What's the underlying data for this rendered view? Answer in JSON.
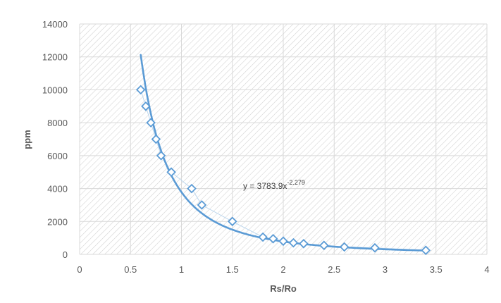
{
  "chart_data": {
    "type": "scatter",
    "xlabel": "Rs/Ro",
    "ylabel": "ppm",
    "xlim": [
      0,
      4
    ],
    "ylim": [
      0,
      14000
    ],
    "x_ticks": [
      "0",
      "0.5",
      "1",
      "1.5",
      "2",
      "2.5",
      "3",
      "3.5",
      "4"
    ],
    "y_ticks": [
      "0",
      "2000",
      "4000",
      "6000",
      "8000",
      "10000",
      "12000",
      "14000"
    ],
    "grid": true,
    "legend": "none",
    "series": [
      {
        "x": [
          0.6,
          0.65,
          0.7,
          0.75,
          0.8,
          0.9,
          1.1,
          1.2,
          1.5,
          1.8,
          1.9,
          2.0,
          2.1,
          2.2,
          2.4,
          2.6,
          2.9,
          3.4
        ],
        "y": [
          10000,
          9000,
          8000,
          7000,
          6000,
          5000,
          4000,
          3000,
          2000,
          1050,
          950,
          800,
          700,
          650,
          550,
          450,
          400,
          250
        ],
        "color": "#5b9bd5",
        "marker": "diamond"
      }
    ],
    "trendline": {
      "type": "power",
      "a": 3783.9,
      "b": -2.279,
      "x_range": [
        0.6,
        3.4
      ],
      "color": "#5b9bd5",
      "equation_prefix": "y = 3783.9x",
      "equation_exponent": "-2.279"
    },
    "colors": {
      "series": "#5b9bd5",
      "connector": "#bdd7ee",
      "grid": "#d9d9d9",
      "hatch": "#d0d0d0",
      "text": "#595959"
    }
  }
}
